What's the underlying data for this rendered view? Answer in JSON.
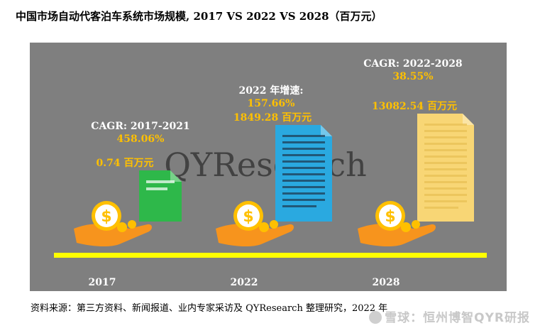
{
  "title": "中国市场自动代客泊车系统市场规模, 2017 VS 2022 VS 2028（百万元）",
  "watermark_center": "QYResearch",
  "footnote": "资料来源：第三方资料、新闻报道、业内专家采访及 QYResearch 整理研究，2022 年",
  "corner_watermark": "雪球：恒州博智QYR研报",
  "chart_data": {
    "type": "bar",
    "categories": [
      "2017",
      "2022",
      "2028"
    ],
    "values": [
      0.74,
      1849.28,
      13082.54
    ],
    "unit": "百万元",
    "value_labels": [
      "0.74",
      "1849.28",
      "13082.54"
    ],
    "annotations": [
      {
        "label": "CAGR: 2017-2021",
        "value": "458.06%"
      },
      {
        "label": "2022 年增速:",
        "value": "157.66%"
      },
      {
        "label": "CAGR: 2022-2028",
        "value": "38.55%"
      }
    ],
    "doc_colors": [
      "#2eb84a",
      "#2aa9e0",
      "#f8d675"
    ],
    "colors": {
      "panel": "#7f7f7f",
      "highlight": "#ffc000",
      "text_white": "#ffffff",
      "baseline": "#ffff00",
      "coin": "#ffc000",
      "hand": "#f7941d"
    },
    "icons": [
      "hand-coin-icon",
      "document-icon"
    ]
  }
}
